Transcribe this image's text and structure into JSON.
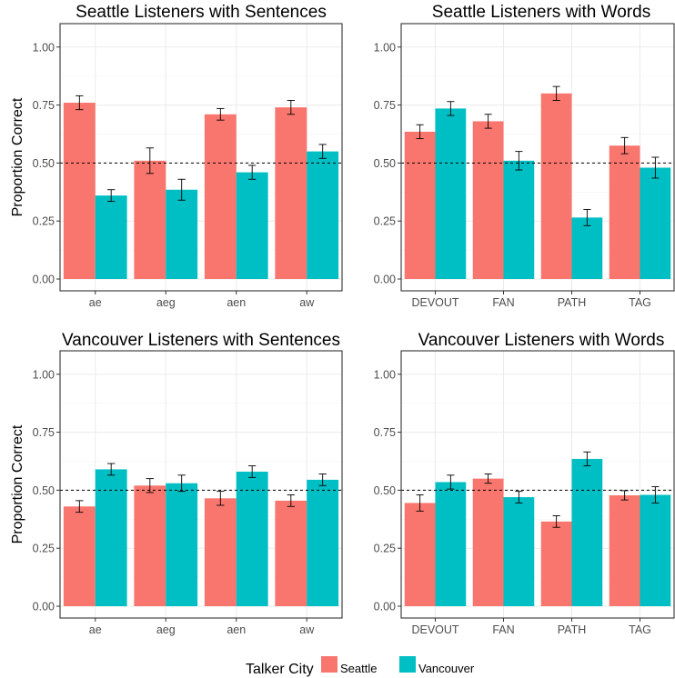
{
  "chart_data": [
    {
      "type": "bar",
      "title": "Seattle Listeners with Sentences",
      "xlabel": "",
      "ylabel": "Proportion Correct",
      "categories": [
        "ae",
        "aeg",
        "aen",
        "aw"
      ],
      "ylim": [
        0,
        1.05
      ],
      "yticks": [
        "0.00",
        "0.25",
        "0.50",
        "0.75",
        "1.00"
      ],
      "reference_line": 0.5,
      "series": [
        {
          "name": "Seattle",
          "values": [
            0.76,
            0.51,
            0.71,
            0.74
          ],
          "err": [
            0.03,
            0.055,
            0.025,
            0.03
          ]
        },
        {
          "name": "Vancouver",
          "values": [
            0.36,
            0.385,
            0.46,
            0.55
          ],
          "err": [
            0.025,
            0.045,
            0.03,
            0.03
          ]
        }
      ]
    },
    {
      "type": "bar",
      "title": "Seattle Listeners with Words",
      "xlabel": "",
      "ylabel": "",
      "categories": [
        "DEVOUT",
        "FAN",
        "PATH",
        "TAG"
      ],
      "ylim": [
        0,
        1.05
      ],
      "yticks": [
        "0.00",
        "0.25",
        "0.50",
        "0.75",
        "1.00"
      ],
      "reference_line": 0.5,
      "series": [
        {
          "name": "Seattle",
          "values": [
            0.635,
            0.68,
            0.8,
            0.575
          ],
          "err": [
            0.03,
            0.03,
            0.03,
            0.035
          ]
        },
        {
          "name": "Vancouver",
          "values": [
            0.735,
            0.51,
            0.265,
            0.48
          ],
          "err": [
            0.03,
            0.04,
            0.035,
            0.045
          ]
        }
      ]
    },
    {
      "type": "bar",
      "title": "Vancouver Listeners with Sentences",
      "xlabel": "",
      "ylabel": "Proportion Correct",
      "categories": [
        "ae",
        "aeg",
        "aen",
        "aw"
      ],
      "ylim": [
        0,
        1.05
      ],
      "yticks": [
        "0.00",
        "0.25",
        "0.50",
        "0.75",
        "1.00"
      ],
      "reference_line": 0.5,
      "series": [
        {
          "name": "Seattle",
          "values": [
            0.43,
            0.52,
            0.465,
            0.455
          ],
          "err": [
            0.025,
            0.03,
            0.03,
            0.025
          ]
        },
        {
          "name": "Vancouver",
          "values": [
            0.59,
            0.53,
            0.58,
            0.545
          ],
          "err": [
            0.025,
            0.035,
            0.025,
            0.025
          ]
        }
      ]
    },
    {
      "type": "bar",
      "title": "Vancouver Listeners with Words",
      "xlabel": "",
      "ylabel": "",
      "categories": [
        "DEVOUT",
        "FAN",
        "PATH",
        "TAG"
      ],
      "ylim": [
        0,
        1.05
      ],
      "yticks": [
        "0.00",
        "0.25",
        "0.50",
        "0.75",
        "1.00"
      ],
      "reference_line": 0.5,
      "series": [
        {
          "name": "Seattle",
          "values": [
            0.445,
            0.55,
            0.365,
            0.478
          ],
          "err": [
            0.035,
            0.02,
            0.025,
            0.02
          ]
        },
        {
          "name": "Vancouver",
          "values": [
            0.535,
            0.47,
            0.635,
            0.48
          ],
          "err": [
            0.03,
            0.025,
            0.03,
            0.035
          ]
        }
      ]
    }
  ],
  "legend": {
    "title": "Talker City",
    "placement": "bottom",
    "entries": [
      {
        "label": "Seattle",
        "color": "#F8766D"
      },
      {
        "label": "Vancouver",
        "color": "#00BFC4"
      }
    ]
  },
  "colors": {
    "seattle": "#F8766D",
    "vancouver": "#00BFC4",
    "grid_major": "#ebebeb",
    "grid_minor": "#f5f5f5",
    "panel_border": "#333333",
    "tick_text": "#4d4d4d"
  }
}
